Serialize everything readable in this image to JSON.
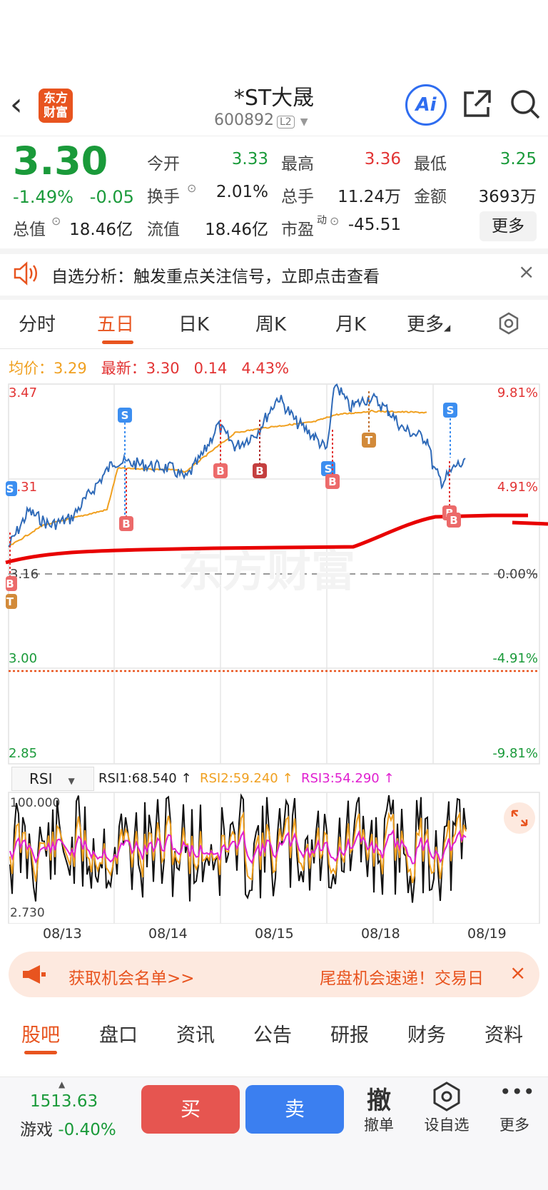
{
  "header": {
    "logo_text": "东方财富",
    "title": "*ST大晟",
    "code": "600892",
    "level": "L2",
    "ai_label": "Ai"
  },
  "quote": {
    "price": "3.30",
    "change_pct": "-1.49%",
    "change_amt": "-0.05",
    "fields": {
      "open_label": "今开",
      "open": "3.33",
      "high_label": "最高",
      "high": "3.36",
      "low_label": "最低",
      "low": "3.25",
      "turnover_label": "换手",
      "turnover": "2.01%",
      "volume_label": "总手",
      "volume": "11.24万",
      "amount_label": "金额",
      "amount": "3693万",
      "mktcap_label": "总值",
      "mktcap": "18.46亿",
      "float_label": "流值",
      "float": "18.46亿",
      "pe_label": "市盈",
      "pe_sup": "动",
      "pe": "-45.51"
    },
    "more_label": "更多"
  },
  "notice": {
    "text": "自选分析：触发重点关注信号，立即点击查看"
  },
  "chart_tabs": [
    "分时",
    "五日",
    "日K",
    "周K",
    "月K",
    "更多"
  ],
  "active_chart_tab": "五日",
  "legend": {
    "avg_label": "均价：",
    "avg_value": "3.29",
    "latest_label": "最新：",
    "latest_value": "3.30",
    "latest_change": "0.14",
    "latest_pct": "4.43%"
  },
  "chart_axis": {
    "left_ticks": [
      "3.47",
      "3.31",
      "3.16",
      "3.00",
      "2.85"
    ],
    "right_ticks": [
      "9.81%",
      "4.91%",
      "0.00%",
      "-4.91%",
      "-9.81%"
    ]
  },
  "watermark": "东方财富",
  "rsi": {
    "selector": "RSI",
    "rsi1": "RSI1:68.540 ↑",
    "rsi2": "RSI2:59.240 ↑",
    "rsi3": "RSI3:54.290 ↑",
    "top_tick": "100.000",
    "bottom_tick": "2.730"
  },
  "dates": [
    "08/13",
    "08/14",
    "08/15",
    "08/18",
    "08/19"
  ],
  "colors": {
    "up": "#e23434",
    "down": "#1a9a3a",
    "accent": "#e8541f",
    "price_line": "#2f6ab8",
    "avg_line": "#f0a020",
    "rsi1": "#111111",
    "rsi2": "#f0a020",
    "rsi3": "#e020d0"
  },
  "chart_data": {
    "type": "line",
    "x": [
      "08/13",
      "08/14",
      "08/15",
      "08/18",
      "08/19"
    ],
    "ylim": [
      2.85,
      3.47
    ],
    "series": [],
    "markers": [
      "S",
      "B",
      "T"
    ]
  },
  "banner": {
    "left_text": "获取机会名单>>",
    "right_text": "尾盘机会速递！交易日"
  },
  "bottom_tabs": [
    "股吧",
    "盘口",
    "资讯",
    "公告",
    "研报",
    "财务",
    "资料"
  ],
  "active_bottom_tab": "股吧",
  "bottom_bar": {
    "index_value": "1513.63",
    "index_name": "游戏",
    "index_change": "-0.40%",
    "buy_label": "买",
    "sell_label": "卖",
    "cancel_icon": "撤",
    "cancel_label": "撤单",
    "watch_label": "设自选",
    "more_label": "更多"
  }
}
